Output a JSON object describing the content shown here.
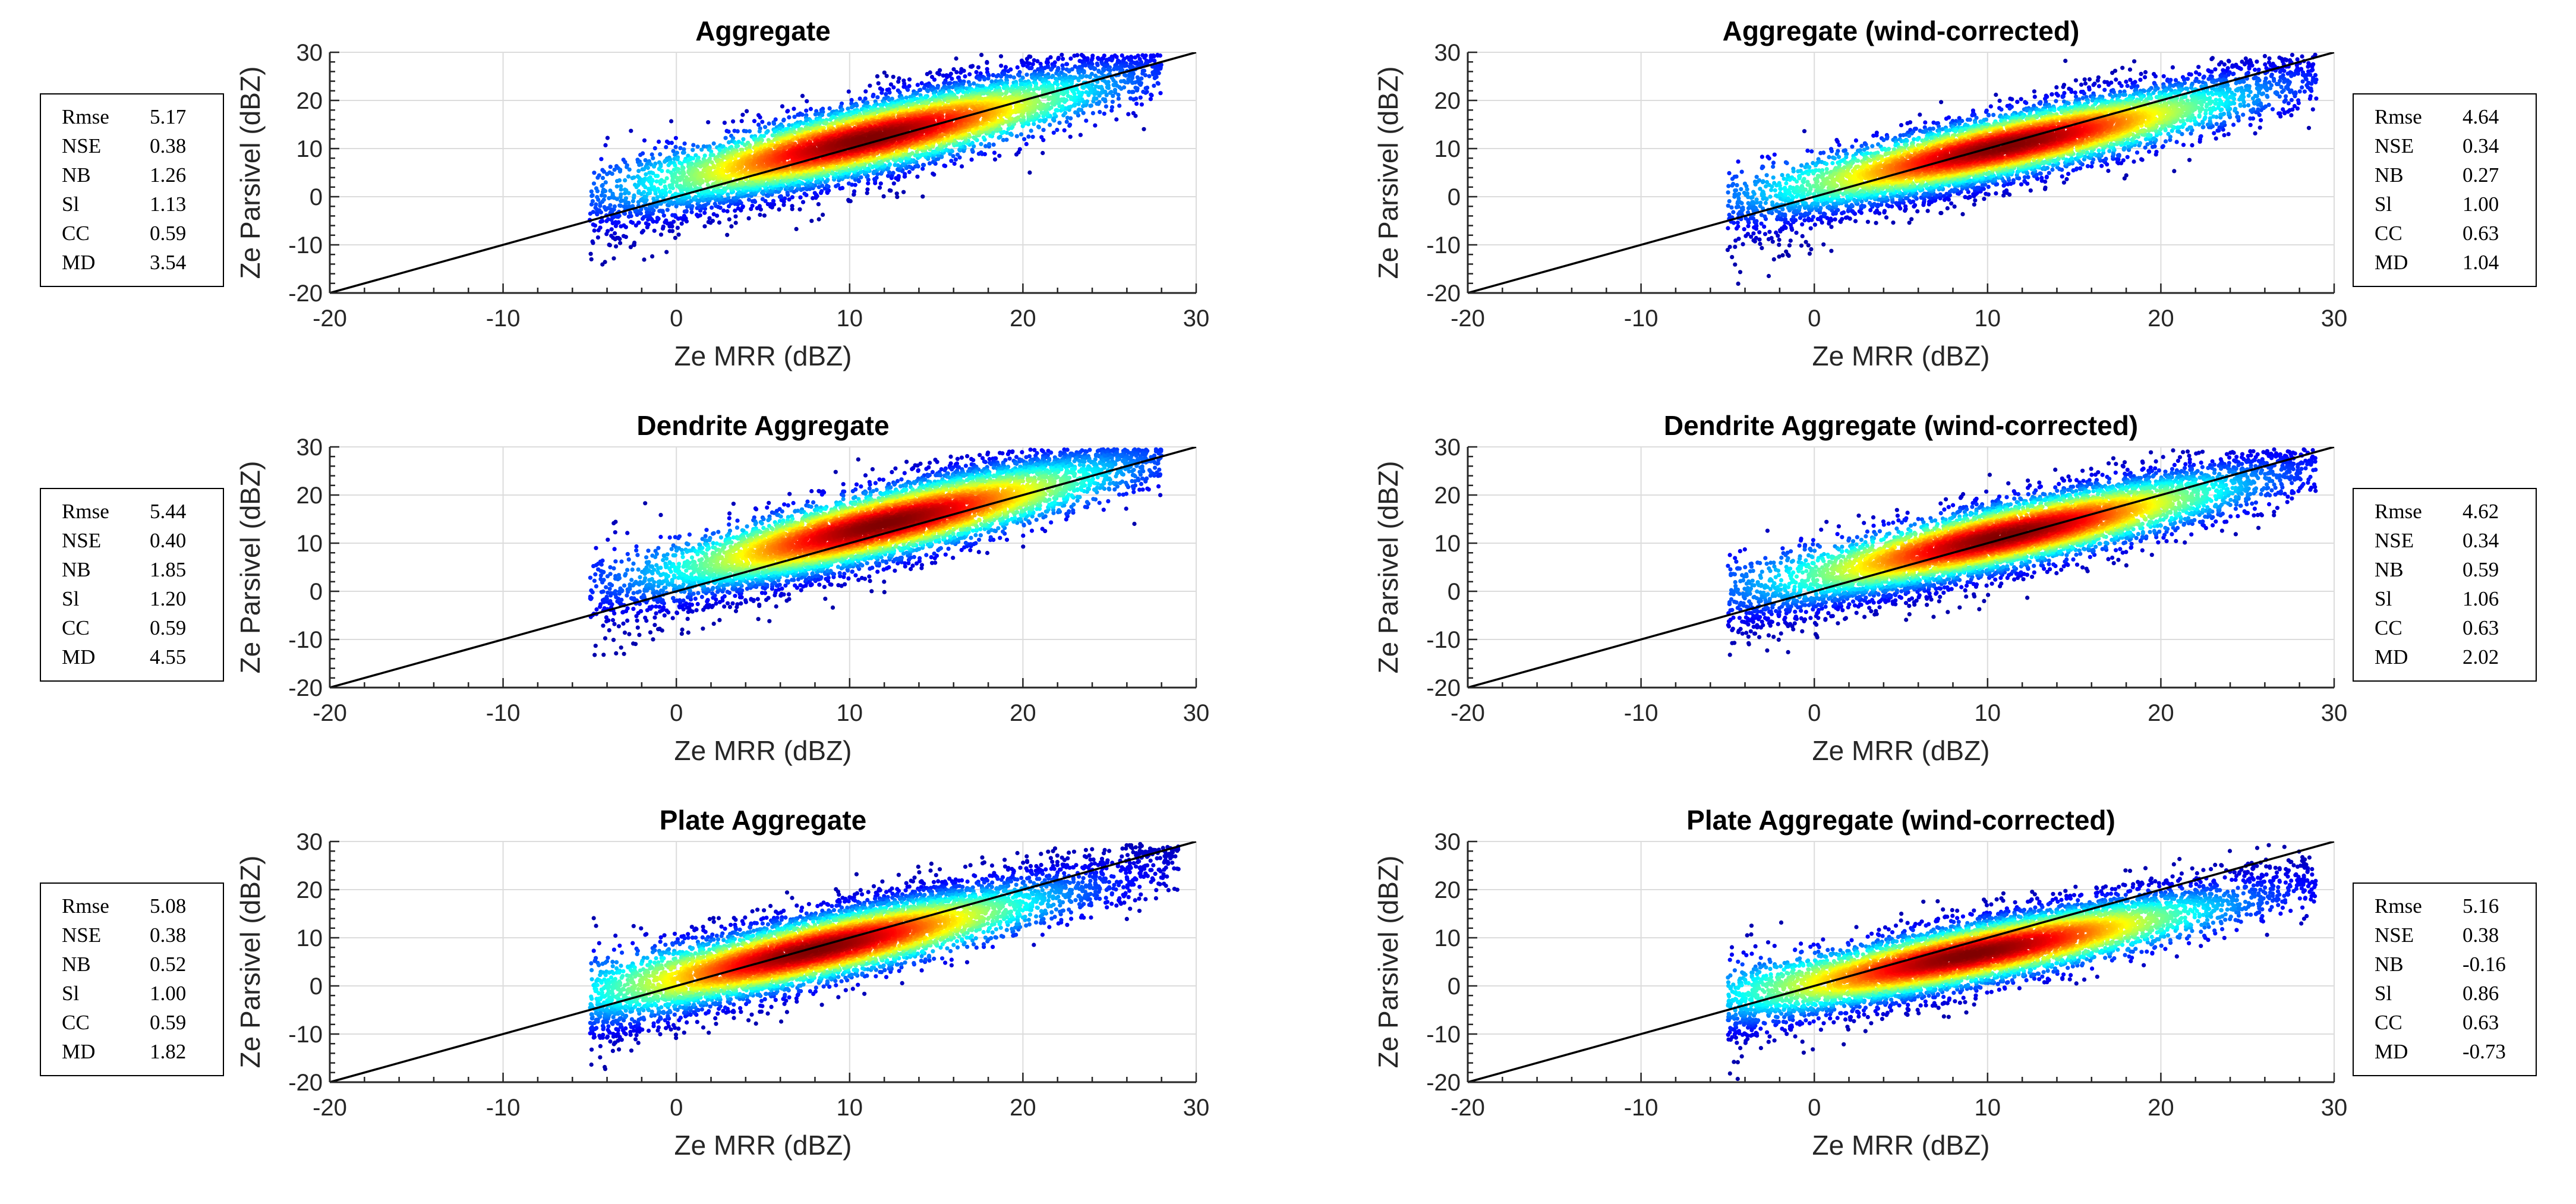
{
  "chart_data": [
    {
      "type": "scatter",
      "title": "Aggregate",
      "xlabel": "Ze MRR (dBZ)",
      "ylabel": "Ze Parsivel (dBZ)",
      "xlim": [
        -20,
        30
      ],
      "ylim": [
        -20,
        30
      ],
      "xticks": [
        "-20",
        "-10",
        "0",
        "10",
        "20",
        "30"
      ],
      "yticks": [
        "-20",
        "-10",
        "0",
        "10",
        "20",
        "30"
      ],
      "grid": true,
      "reference_line": {
        "x": [
          -20,
          30
        ],
        "y": [
          -20,
          30
        ]
      },
      "density": {
        "x_min": -5,
        "x_max": 28,
        "slope": 0.92,
        "intercept": 1.8,
        "spread": 4.0,
        "core": [
          11,
          12
        ]
      },
      "stats": [
        {
          "label": "Rmse",
          "value": "5.17"
        },
        {
          "label": "NSE",
          "value": "0.38"
        },
        {
          "label": "NB",
          "value": "1.26"
        },
        {
          "label": "Sl",
          "value": "1.13"
        },
        {
          "label": "CC",
          "value": "0.59"
        },
        {
          "label": "MD",
          "value": "3.54"
        }
      ],
      "stats_position": "left"
    },
    {
      "type": "scatter",
      "title": "Aggregate (wind-corrected)",
      "xlabel": "Ze MRR (dBZ)",
      "ylabel": "Ze Parsivel (dBZ)",
      "xlim": [
        -20,
        30
      ],
      "ylim": [
        -20,
        30
      ],
      "xticks": [
        "-20",
        "-10",
        "0",
        "10",
        "20",
        "30"
      ],
      "yticks": [
        "-20",
        "-10",
        "0",
        "10",
        "20",
        "30"
      ],
      "grid": true,
      "reference_line": {
        "x": [
          -20,
          30
        ],
        "y": [
          -20,
          30
        ]
      },
      "density": {
        "x_min": -5,
        "x_max": 29,
        "slope": 0.85,
        "intercept": 0.8,
        "spread": 3.6,
        "core": [
          11,
          10.5
        ]
      },
      "stats": [
        {
          "label": "Rmse",
          "value": "4.64"
        },
        {
          "label": "NSE",
          "value": "0.34"
        },
        {
          "label": "NB",
          "value": "0.27"
        },
        {
          "label": "Sl",
          "value": "1.00"
        },
        {
          "label": "CC",
          "value": "0.63"
        },
        {
          "label": "MD",
          "value": "1.04"
        }
      ],
      "stats_position": "right"
    },
    {
      "type": "scatter",
      "title": "Dendrite Aggregate",
      "xlabel": "Ze MRR (dBZ)",
      "ylabel": "Ze Parsivel (dBZ)",
      "xlim": [
        -20,
        30
      ],
      "ylim": [
        -20,
        30
      ],
      "xticks": [
        "-20",
        "-10",
        "0",
        "10",
        "20",
        "30"
      ],
      "yticks": [
        "-20",
        "-10",
        "0",
        "10",
        "20",
        "30"
      ],
      "grid": true,
      "reference_line": {
        "x": [
          -20,
          30
        ],
        "y": [
          -20,
          30
        ]
      },
      "density": {
        "x_min": -5,
        "x_max": 28,
        "slope": 0.95,
        "intercept": 2.5,
        "spread": 4.0,
        "core": [
          12,
          14
        ]
      },
      "stats": [
        {
          "label": "Rmse",
          "value": "5.44"
        },
        {
          "label": "NSE",
          "value": "0.40"
        },
        {
          "label": "NB",
          "value": "1.85"
        },
        {
          "label": "Sl",
          "value": "1.20"
        },
        {
          "label": "CC",
          "value": "0.59"
        },
        {
          "label": "MD",
          "value": "4.55"
        }
      ],
      "stats_position": "left"
    },
    {
      "type": "scatter",
      "title": "Dendrite Aggregate (wind-corrected)",
      "xlabel": "Ze MRR (dBZ)",
      "ylabel": "Ze Parsivel (dBZ)",
      "xlim": [
        -20,
        30
      ],
      "ylim": [
        -20,
        30
      ],
      "xticks": [
        "-20",
        "-10",
        "0",
        "10",
        "20",
        "30"
      ],
      "yticks": [
        "-20",
        "-10",
        "0",
        "10",
        "20",
        "30"
      ],
      "grid": true,
      "reference_line": {
        "x": [
          -20,
          30
        ],
        "y": [
          -20,
          30
        ]
      },
      "density": {
        "x_min": -5,
        "x_max": 29,
        "slope": 0.88,
        "intercept": 1.3,
        "spread": 3.7,
        "core": [
          11,
          11.5
        ]
      },
      "stats": [
        {
          "label": "Rmse",
          "value": "4.62"
        },
        {
          "label": "NSE",
          "value": "0.34"
        },
        {
          "label": "NB",
          "value": "0.59"
        },
        {
          "label": "Sl",
          "value": "1.06"
        },
        {
          "label": "CC",
          "value": "0.63"
        },
        {
          "label": "MD",
          "value": "2.02"
        }
      ],
      "stats_position": "right"
    },
    {
      "type": "scatter",
      "title": "Plate Aggregate",
      "xlabel": "Ze MRR (dBZ)",
      "ylabel": "Ze Parsivel (dBZ)",
      "xlim": [
        -20,
        30
      ],
      "ylim": [
        -20,
        30
      ],
      "xticks": [
        "-20",
        "-10",
        "0",
        "10",
        "20",
        "30"
      ],
      "yticks": [
        "-20",
        "-10",
        "0",
        "10",
        "20",
        "30"
      ],
      "grid": true,
      "reference_line": {
        "x": [
          -20,
          30
        ],
        "y": [
          -20,
          30
        ]
      },
      "density": {
        "x_min": -5,
        "x_max": 29,
        "slope": 0.9,
        "intercept": 0.5,
        "spread": 3.8,
        "core": [
          8,
          7.5
        ]
      },
      "stats": [
        {
          "label": "Rmse",
          "value": "5.08"
        },
        {
          "label": "NSE",
          "value": "0.38"
        },
        {
          "label": "NB",
          "value": "0.52"
        },
        {
          "label": "Sl",
          "value": "1.00"
        },
        {
          "label": "CC",
          "value": "0.59"
        },
        {
          "label": "MD",
          "value": "1.82"
        }
      ],
      "stats_position": "left"
    },
    {
      "type": "scatter",
      "title": "Plate Aggregate (wind-corrected)",
      "xlabel": "Ze MRR (dBZ)",
      "ylabel": "Ze Parsivel (dBZ)",
      "xlim": [
        -20,
        30
      ],
      "ylim": [
        -20,
        30
      ],
      "xticks": [
        "-20",
        "-10",
        "0",
        "10",
        "20",
        "30"
      ],
      "yticks": [
        "-20",
        "-10",
        "0",
        "10",
        "20",
        "30"
      ],
      "grid": true,
      "reference_line": {
        "x": [
          -20,
          30
        ],
        "y": [
          -20,
          30
        ]
      },
      "density": {
        "x_min": -5,
        "x_max": 29,
        "slope": 0.78,
        "intercept": -0.5,
        "spread": 3.5,
        "core": [
          9,
          6.5
        ]
      },
      "stats": [
        {
          "label": "Rmse",
          "value": "5.16"
        },
        {
          "label": "NSE",
          "value": "0.38"
        },
        {
          "label": "NB",
          "value": "-0.16"
        },
        {
          "label": "Sl",
          "value": "0.86"
        },
        {
          "label": "CC",
          "value": "0.63"
        },
        {
          "label": "MD",
          "value": "-0.73"
        }
      ],
      "stats_position": "right"
    }
  ]
}
